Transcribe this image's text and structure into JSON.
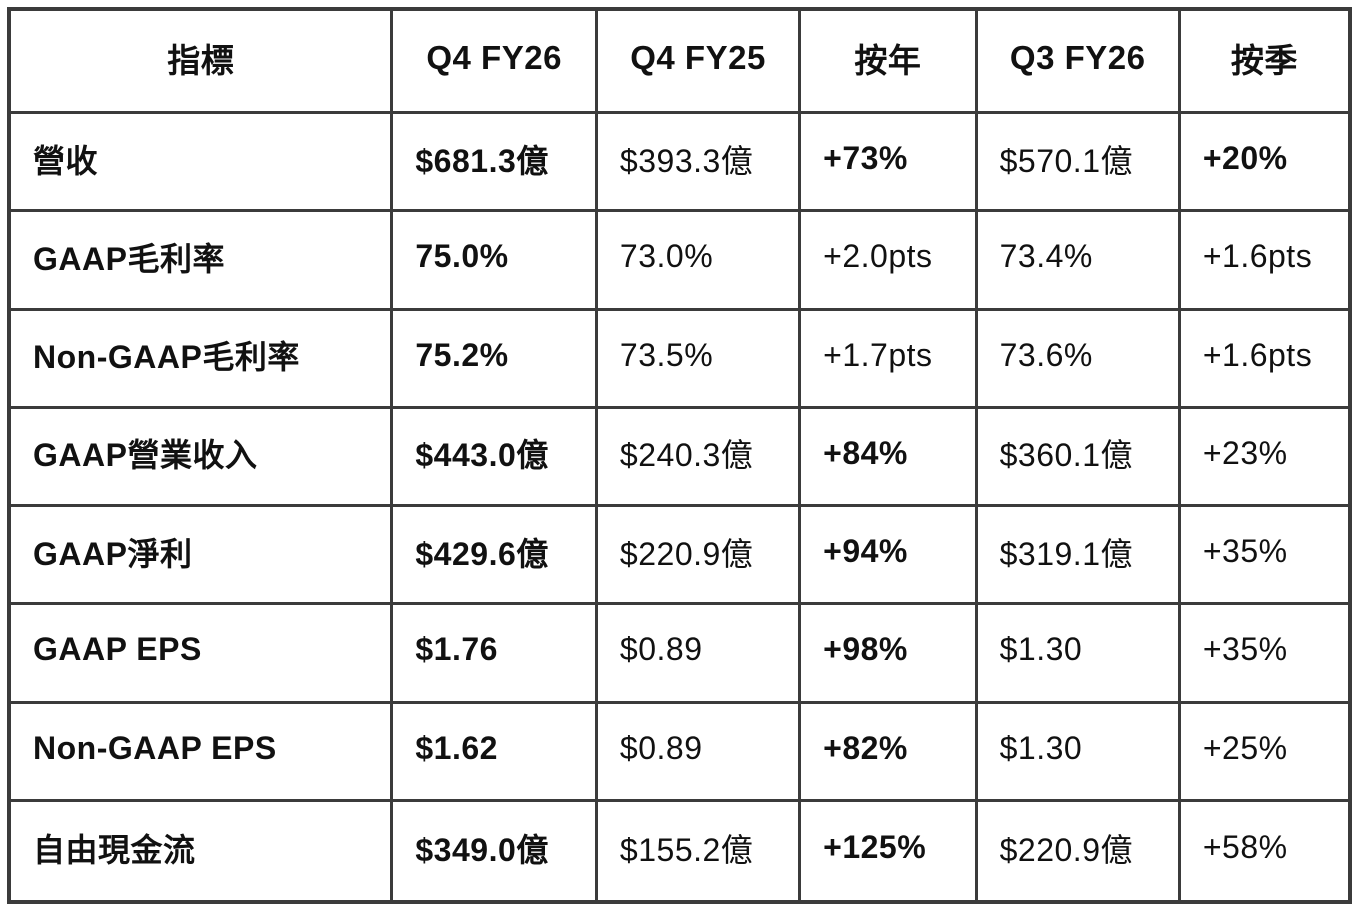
{
  "chart_data": {
    "type": "table",
    "title": "",
    "columns": [
      "指標",
      "Q4 FY26",
      "Q4 FY25",
      "按年",
      "Q3 FY26",
      "按季"
    ],
    "rows": [
      [
        "營收",
        "$681.3億",
        "$393.3億",
        "+73%",
        "$570.1億",
        "+20%"
      ],
      [
        "GAAP毛利率",
        "75.0%",
        "73.0%",
        "+2.0pts",
        "73.4%",
        "+1.6pts"
      ],
      [
        "Non-GAAP毛利率",
        "75.2%",
        "73.5%",
        "+1.7pts",
        "73.6%",
        "+1.6pts"
      ],
      [
        "GAAP營業收入",
        "$443.0億",
        "$240.3億",
        "+84%",
        "$360.1億",
        "+23%"
      ],
      [
        "GAAP淨利",
        "$429.6億",
        "$220.9億",
        "+94%",
        "$319.1億",
        "+35%"
      ],
      [
        "GAAP EPS",
        "$1.76",
        "$0.89",
        "+98%",
        "$1.30",
        "+35%"
      ],
      [
        "Non-GAAP EPS",
        "$1.62",
        "$0.89",
        "+82%",
        "$1.30",
        "+25%"
      ],
      [
        "自由現金流",
        "$349.0億",
        "$155.2億",
        "+125%",
        "$220.9億",
        "+58%"
      ]
    ]
  },
  "style": {
    "border_color": "#3b3b3b",
    "text_color": "#111111",
    "background": "#ffffff"
  }
}
